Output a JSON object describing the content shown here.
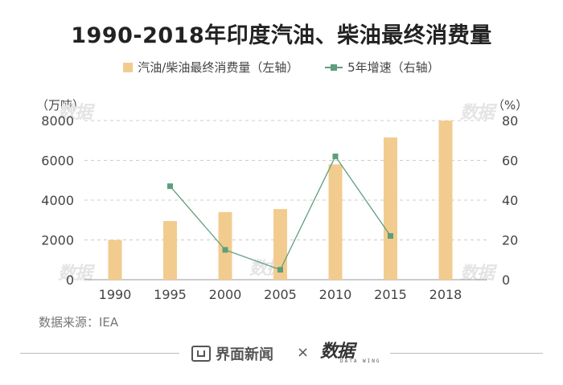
{
  "title": "1990-2018年印度汽油、柴油最终消费量",
  "legend": {
    "bar": "汽油/柴油最终消费量（左轴）",
    "line": "5年增速（右轴）"
  },
  "units": {
    "left": "（万吨）",
    "right": "（%）"
  },
  "source": "数据来源：IEA",
  "footer": {
    "brand": "界面新闻",
    "times": "×",
    "logo": "数据",
    "logo_sub": "DATA WING"
  },
  "watermark": "数据",
  "colors": {
    "bar": "#F2CC8F",
    "line": "#5E9E7C",
    "grid": "#cccccc",
    "axis_text": "#444444"
  },
  "chart_data": {
    "type": "bar",
    "categories": [
      "1990",
      "1995",
      "2000",
      "2005",
      "2010",
      "2015",
      "2018"
    ],
    "series": [
      {
        "name": "汽油/柴油最终消费量（左轴）",
        "type": "bar",
        "axis": "left",
        "values": [
          2000,
          2950,
          3400,
          3550,
          5800,
          7150,
          8000
        ]
      },
      {
        "name": "5年增速（右轴）",
        "type": "line",
        "axis": "right",
        "values": [
          null,
          47,
          15,
          5,
          62,
          22,
          null
        ]
      }
    ],
    "left_axis": {
      "ylim": [
        0,
        8000
      ],
      "ticks": [
        "0",
        "2000",
        "4000",
        "6000",
        "8000"
      ]
    },
    "right_axis": {
      "ylim": [
        0,
        80
      ],
      "ticks": [
        "0",
        "20",
        "40",
        "60",
        "80"
      ]
    },
    "grid": true
  }
}
